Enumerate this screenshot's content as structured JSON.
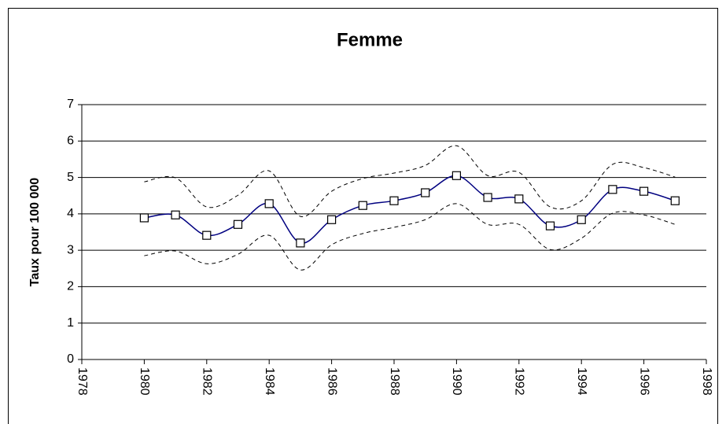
{
  "chart_data": {
    "type": "line",
    "title": "Femme",
    "y_label": "Taux pour 100 000",
    "x": [
      1980,
      1981,
      1982,
      1983,
      1984,
      1985,
      1986,
      1987,
      1988,
      1989,
      1990,
      1991,
      1992,
      1993,
      1994,
      1995,
      1996,
      1997
    ],
    "series": [
      {
        "color": "#000080",
        "style": "solid",
        "marker": "square",
        "values": [
          3.89,
          3.97,
          3.41,
          3.71,
          4.28,
          3.2,
          3.84,
          4.23,
          4.36,
          4.58,
          5.05,
          4.45,
          4.41,
          3.67,
          3.84,
          4.67,
          4.62,
          4.36
        ]
      },
      {
        "color": "#000000",
        "style": "dashed",
        "values": [
          4.88,
          4.99,
          4.19,
          4.51,
          5.18,
          3.93,
          4.62,
          4.97,
          5.12,
          5.33,
          5.87,
          5.05,
          5.14,
          4.19,
          4.36,
          5.36,
          5.27,
          5.01
        ]
      },
      {
        "color": "#000000",
        "style": "dashed",
        "values": [
          2.85,
          2.98,
          2.63,
          2.89,
          3.41,
          2.46,
          3.15,
          3.46,
          3.63,
          3.84,
          4.28,
          3.71,
          3.71,
          3.02,
          3.33,
          4.02,
          3.97,
          3.71
        ]
      }
    ],
    "xlim": [
      1978,
      1998
    ],
    "xticks": [
      1978,
      1980,
      1982,
      1984,
      1986,
      1988,
      1990,
      1992,
      1994,
      1996,
      1998
    ],
    "ylim": [
      0,
      7
    ],
    "yticks": [
      0,
      1,
      2,
      3,
      4,
      5,
      6,
      7
    ],
    "grid": true,
    "smooth": true
  }
}
